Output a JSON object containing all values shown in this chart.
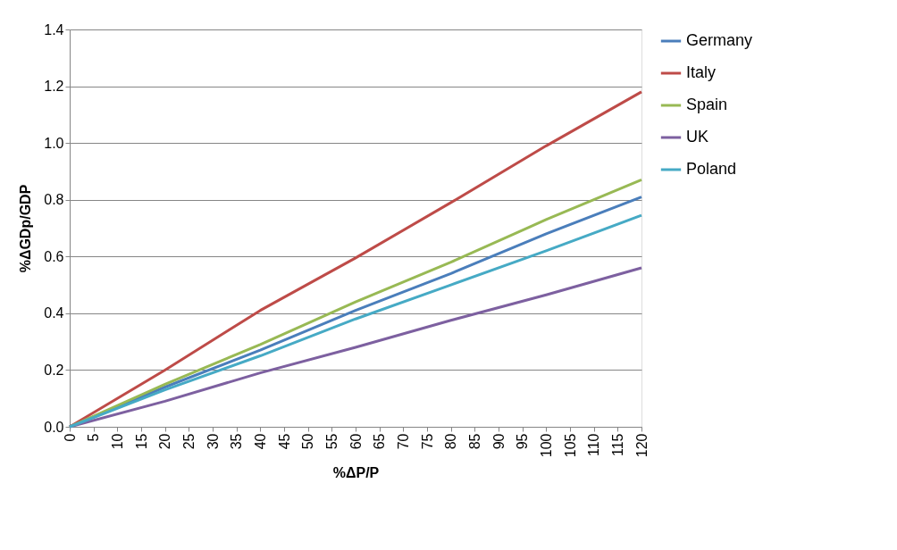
{
  "chart_data": {
    "type": "line",
    "xlabel": "%ΔP/P",
    "ylabel": "%ΔGDp/GDP",
    "x": [
      0,
      20,
      40,
      60,
      80,
      100,
      120
    ],
    "series": [
      {
        "name": "Germany",
        "color": "#4a7ebb",
        "values": [
          0,
          0.14,
          0.27,
          0.41,
          0.54,
          0.68,
          0.81
        ]
      },
      {
        "name": "Italy",
        "color": "#be4b48",
        "values": [
          0,
          0.2,
          0.41,
          0.595,
          0.79,
          0.99,
          1.18
        ]
      },
      {
        "name": "Spain",
        "color": "#98b954",
        "values": [
          0,
          0.15,
          0.29,
          0.44,
          0.58,
          0.73,
          0.87
        ]
      },
      {
        "name": "UK",
        "color": "#7d60a0",
        "values": [
          0,
          0.09,
          0.19,
          0.28,
          0.375,
          0.465,
          0.56
        ]
      },
      {
        "name": "Poland",
        "color": "#46aac5",
        "values": [
          0,
          0.13,
          0.25,
          0.38,
          0.5,
          0.62,
          0.745
        ]
      }
    ],
    "xlim": [
      0,
      120
    ],
    "xticks": [
      0,
      5,
      10,
      15,
      20,
      25,
      30,
      35,
      40,
      45,
      50,
      55,
      60,
      65,
      70,
      75,
      80,
      85,
      90,
      95,
      100,
      105,
      110,
      115,
      120
    ],
    "ylim": [
      0,
      1.4
    ],
    "yticks": [
      {
        "value": 0,
        "label": "0.0"
      },
      {
        "value": 0.2,
        "label": "0.2"
      },
      {
        "value": 0.4,
        "label": "0.4"
      },
      {
        "value": 0.6,
        "label": "0.6"
      },
      {
        "value": 0.8,
        "label": "0.8"
      },
      {
        "value": 1.0,
        "label": "1.0"
      },
      {
        "value": 1.2,
        "label": "1.2"
      },
      {
        "value": 1.4,
        "label": "1.4"
      }
    ],
    "grid": "y",
    "legend": "right",
    "marker": "none",
    "line_style": "solid"
  }
}
